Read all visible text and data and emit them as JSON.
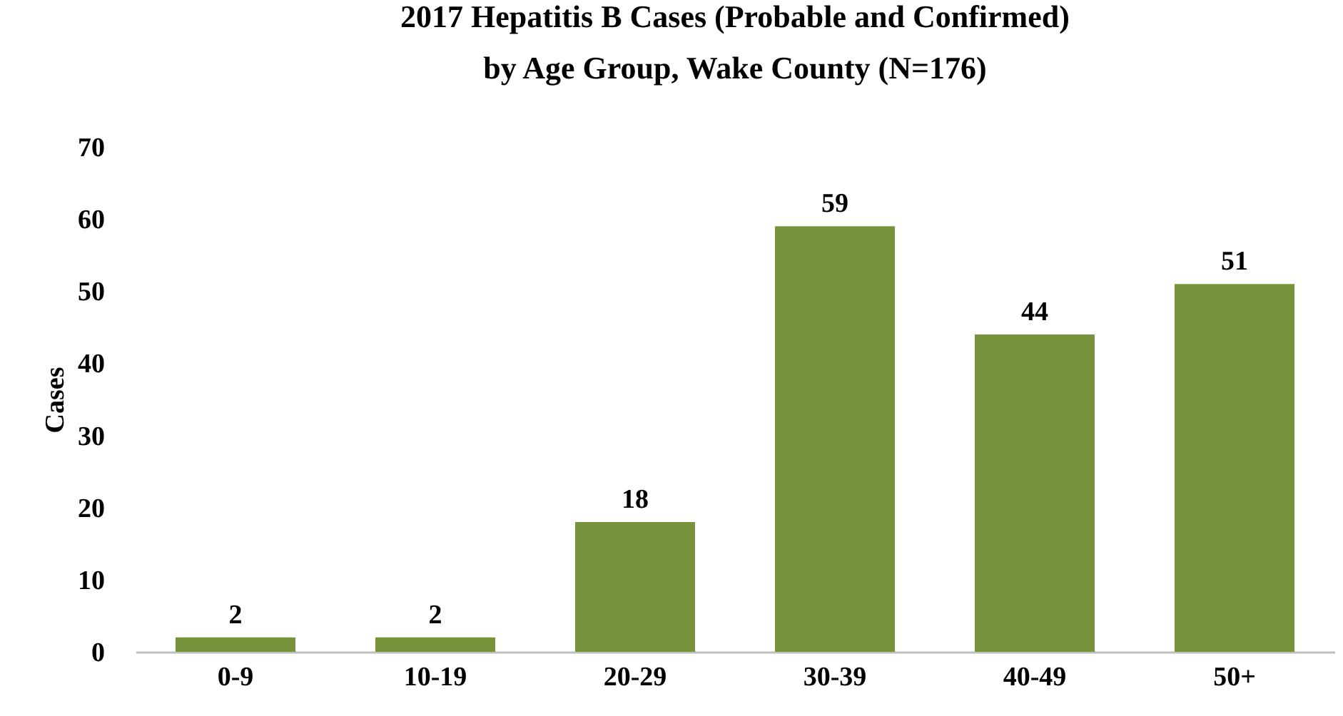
{
  "chart_data": {
    "type": "bar",
    "title": "2017 Hepatitis B Cases (Probable and Confirmed)\nby Age Group, Wake  County (N=176)",
    "ylabel": "Cases",
    "categories": [
      "0-9",
      "10-19",
      "20-29",
      "30-39",
      "40-49",
      "50+"
    ],
    "values": [
      2,
      2,
      18,
      59,
      44,
      51
    ],
    "color": "#77933c",
    "ylim": [
      0,
      70
    ],
    "yticks": [
      0,
      10,
      20,
      30,
      40,
      50,
      60,
      70
    ],
    "grid": false,
    "data_labels": true
  }
}
